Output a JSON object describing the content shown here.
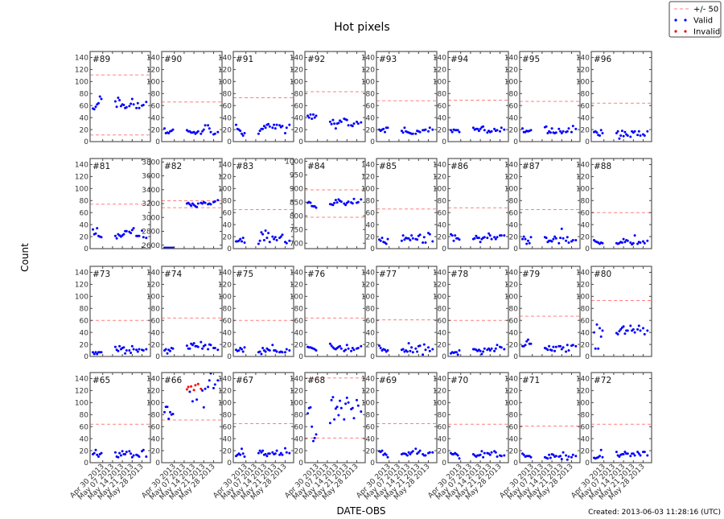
{
  "chart_data": {
    "type": "scatter",
    "title": "Hot pixels",
    "xlabel": "DATE-OBS",
    "ylabel": "Count",
    "footer": "Created: 2013-06-03 11:28:16 (UTC)",
    "xlim": [
      "2013-04-21",
      "2013-06-03"
    ],
    "xticks": [
      "2013-04-30",
      "2013-05-07",
      "2013-05-14",
      "2013-05-21",
      "2013-05-28"
    ],
    "xtick_labels": [
      "Apr 30 2013",
      "May 07 2013",
      "May 14 2013",
      "May 21 2013",
      "May 28 2013"
    ],
    "ylim": [
      0,
      150
    ],
    "yticks": [
      0,
      20,
      40,
      60,
      80,
      100,
      120,
      140
    ],
    "band_halfwidth": 50,
    "grid": false,
    "legend": {
      "placement": "top-right",
      "entries": [
        {
          "label": "+/- 50",
          "marker": "dashed-line",
          "color": "#ff8080"
        },
        {
          "label": "Valid",
          "marker": "dot",
          "color": "#0000ff"
        },
        {
          "label": "Invalid",
          "marker": "dot",
          "color": "#ff0000"
        }
      ]
    },
    "colors": {
      "valid": "#0000ff",
      "invalid": "#ff0000",
      "band": "#ff8080"
    },
    "x": [
      "2013-04-23",
      "2013-04-24",
      "2013-04-25",
      "2013-04-26",
      "2013-04-27",
      "2013-04-28",
      "2013-04-29",
      "2013-05-09",
      "2013-05-10",
      "2013-05-11",
      "2013-05-12",
      "2013-05-13",
      "2013-05-14",
      "2013-05-15",
      "2013-05-16",
      "2013-05-17",
      "2013-05-19",
      "2013-05-20",
      "2013-05-21",
      "2013-05-22",
      "2013-05-24",
      "2013-05-25",
      "2013-05-26",
      "2013-05-28",
      "2013-05-29",
      "2013-05-31"
    ],
    "panels": [
      {
        "label": "#89",
        "median": 61,
        "values": [
          55,
          54,
          58,
          62,
          64,
          75,
          71,
          67,
          58,
          73,
          69,
          59,
          62,
          61,
          56,
          57,
          59,
          63,
          71,
          62,
          56,
          64,
          56,
          60,
          61,
          66
        ]
      },
      {
        "label": "#90",
        "median": 16,
        "values": [
          22,
          14,
          15,
          14,
          17,
          18,
          20,
          19,
          17,
          17,
          15,
          15,
          16,
          13,
          15,
          17,
          13,
          17,
          20,
          27,
          27,
          22,
          16,
          12,
          13,
          16
        ]
      },
      {
        "label": "#91",
        "median": 23,
        "values": [
          28,
          21,
          20,
          18,
          13,
          10,
          14,
          13,
          18,
          21,
          21,
          26,
          23,
          28,
          29,
          25,
          23,
          28,
          22,
          28,
          27,
          24,
          26,
          14,
          23,
          28
        ]
      },
      {
        "label": "#92",
        "median": 33,
        "values": [
          43,
          40,
          45,
          38,
          45,
          40,
          43,
          33,
          29,
          36,
          30,
          22,
          30,
          31,
          35,
          33,
          38,
          37,
          36,
          27,
          27,
          26,
          30,
          33,
          30,
          32
        ]
      },
      {
        "label": "#93",
        "median": 18,
        "values": [
          20,
          18,
          20,
          21,
          16,
          23,
          23,
          18,
          15,
          23,
          17,
          16,
          15,
          14,
          13,
          13,
          13,
          18,
          17,
          16,
          19,
          19,
          20,
          17,
          23,
          20
        ]
      },
      {
        "label": "#94",
        "median": 19,
        "values": [
          19,
          16,
          20,
          19,
          19,
          19,
          16,
          23,
          20,
          21,
          21,
          18,
          21,
          24,
          25,
          19,
          15,
          18,
          16,
          17,
          21,
          18,
          19,
          17,
          23,
          20
        ]
      },
      {
        "label": "#95",
        "median": 17,
        "values": [
          22,
          16,
          16,
          18,
          17,
          18,
          19,
          24,
          25,
          14,
          17,
          15,
          22,
          15,
          14,
          15,
          21,
          17,
          14,
          17,
          16,
          17,
          22,
          16,
          26,
          21
        ]
      },
      {
        "label": "#96",
        "median": 14,
        "values": [
          16,
          17,
          15,
          11,
          10,
          19,
          14,
          14,
          17,
          5,
          10,
          18,
          9,
          16,
          12,
          10,
          8,
          17,
          15,
          17,
          11,
          17,
          10,
          12,
          10,
          17
        ]
      },
      {
        "label": "#81",
        "median": 24,
        "values": [
          32,
          24,
          25,
          34,
          21,
          20,
          19,
          21,
          17,
          24,
          22,
          20,
          22,
          24,
          29,
          29,
          28,
          26,
          31,
          34,
          21,
          21,
          21,
          30,
          19,
          18
        ]
      },
      {
        "label": "#82",
        "median": 3190,
        "ylim": [
          2550,
          3850
        ],
        "yticks": [
          2600,
          2800,
          3000,
          3200,
          3400,
          3600,
          3800
        ],
        "values": [
          2560,
          2560,
          2560,
          2560,
          2560,
          2560,
          2560,
          3200,
          3210,
          3190,
          3170,
          3200,
          3180,
          3160,
          3150,
          3200,
          3210,
          3200,
          3220,
          3210,
          3190,
          3200,
          3190,
          3220,
          3230,
          3250
        ]
      },
      {
        "label": "#83",
        "median": 15,
        "values": [
          12,
          12,
          13,
          16,
          12,
          18,
          10,
          8,
          13,
          27,
          24,
          14,
          30,
          18,
          26,
          11,
          20,
          16,
          19,
          14,
          18,
          20,
          23,
          11,
          9,
          13
        ]
      },
      {
        "label": "#84",
        "median": 845,
        "ylim": [
          680,
          1010
        ],
        "yticks": [
          700,
          750,
          800,
          850,
          900,
          950,
          1000
        ],
        "values": [
          848,
          851,
          848,
          836,
          835,
          835,
          830,
          843,
          842,
          840,
          847,
          858,
          849,
          860,
          855,
          852,
          845,
          840,
          847,
          852,
          849,
          846,
          862,
          848,
          850,
          860
        ]
      },
      {
        "label": "#85",
        "median": 16,
        "values": [
          15,
          13,
          18,
          11,
          10,
          8,
          16,
          13,
          22,
          15,
          18,
          17,
          17,
          14,
          22,
          17,
          16,
          15,
          21,
          23,
          10,
          19,
          10,
          26,
          24,
          12
        ]
      },
      {
        "label": "#86",
        "median": 18,
        "values": [
          24,
          22,
          13,
          22,
          17,
          17,
          15,
          16,
          17,
          21,
          18,
          18,
          11,
          16,
          18,
          19,
          18,
          25,
          22,
          16,
          19,
          16,
          19,
          22,
          22,
          22
        ]
      },
      {
        "label": "#87",
        "median": 15,
        "values": [
          16,
          20,
          16,
          8,
          13,
          9,
          19,
          19,
          18,
          11,
          13,
          13,
          12,
          16,
          20,
          17,
          9,
          18,
          33,
          17,
          13,
          19,
          10,
          12,
          14,
          14
        ]
      },
      {
        "label": "#88",
        "median": 10,
        "values": [
          14,
          12,
          11,
          10,
          8,
          10,
          9,
          9,
          8,
          9,
          11,
          10,
          16,
          11,
          14,
          13,
          10,
          7,
          9,
          22,
          8,
          11,
          10,
          12,
          9,
          13
        ]
      },
      {
        "label": "#73",
        "median": 10,
        "values": [
          7,
          4,
          7,
          4,
          7,
          7,
          7,
          16,
          11,
          9,
          17,
          12,
          14,
          15,
          5,
          10,
          10,
          6,
          17,
          12,
          11,
          8,
          12,
          11,
          10,
          12
        ]
      },
      {
        "label": "#74",
        "median": 14,
        "values": [
          10,
          12,
          5,
          11,
          9,
          14,
          13,
          18,
          13,
          13,
          21,
          19,
          22,
          17,
          17,
          16,
          24,
          13,
          17,
          19,
          12,
          20,
          19,
          14,
          14,
          11
        ]
      },
      {
        "label": "#75",
        "median": 10,
        "values": [
          11,
          9,
          10,
          14,
          12,
          8,
          15,
          7,
          8,
          4,
          14,
          10,
          8,
          13,
          11,
          10,
          19,
          10,
          10,
          8,
          7,
          8,
          7,
          7,
          12,
          10
        ]
      },
      {
        "label": "#76",
        "median": 14,
        "values": [
          16,
          15,
          15,
          14,
          13,
          12,
          10,
          21,
          18,
          15,
          13,
          12,
          14,
          16,
          17,
          13,
          9,
          11,
          19,
          13,
          9,
          14,
          11,
          13,
          14,
          17
        ]
      },
      {
        "label": "#77",
        "median": 11,
        "values": [
          18,
          14,
          10,
          12,
          11,
          8,
          10,
          11,
          12,
          8,
          10,
          8,
          22,
          9,
          15,
          7,
          13,
          8,
          17,
          18,
          3,
          20,
          11,
          15,
          9,
          12
        ]
      },
      {
        "label": "#78",
        "median": 10,
        "values": [
          5,
          7,
          6,
          7,
          7,
          3,
          10,
          12,
          12,
          11,
          9,
          11,
          9,
          4,
          8,
          13,
          11,
          13,
          10,
          13,
          9,
          13,
          19,
          16,
          15,
          12
        ]
      },
      {
        "label": "#79",
        "median": 17,
        "values": [
          17,
          17,
          19,
          25,
          28,
          21,
          21,
          14,
          13,
          11,
          17,
          11,
          10,
          16,
          9,
          16,
          17,
          17,
          12,
          15,
          8,
          19,
          10,
          18,
          19,
          17
        ]
      },
      {
        "label": "#80",
        "median": 43,
        "values": [
          40,
          13,
          53,
          13,
          47,
          33,
          43,
          39,
          37,
          42,
          45,
          48,
          50,
          38,
          43,
          43,
          51,
          43,
          45,
          40,
          45,
          51,
          43,
          47,
          37,
          43
        ]
      },
      {
        "label": "#65",
        "median": 14,
        "values": [
          14,
          16,
          21,
          13,
          10,
          14,
          16,
          17,
          10,
          9,
          16,
          12,
          19,
          14,
          14,
          18,
          19,
          15,
          9,
          12,
          13,
          12,
          10,
          19,
          21,
          10
        ]
      },
      {
        "label": "#66",
        "median": 121,
        "invalid": [
          7,
          8,
          10,
          12,
          13,
          15,
          16
        ],
        "values": [
          84,
          93,
          93,
          73,
          84,
          80,
          81,
          122,
          126,
          118,
          127,
          102,
          121,
          129,
          105,
          131,
          123,
          120,
          92,
          123,
          126,
          137,
          150,
          124,
          130,
          137
        ]
      },
      {
        "label": "#67",
        "median": 15,
        "values": [
          11,
          13,
          15,
          13,
          23,
          15,
          10,
          16,
          20,
          17,
          20,
          13,
          14,
          11,
          15,
          15,
          17,
          14,
          15,
          20,
          13,
          16,
          13,
          24,
          17,
          16
        ]
      },
      {
        "label": "#68",
        "median": 91,
        "values": [
          82,
          91,
          92,
          60,
          36,
          41,
          47,
          66,
          104,
          109,
          72,
          90,
          93,
          79,
          103,
          91,
          72,
          98,
          108,
          100,
          89,
          91,
          74,
          104,
          95,
          85
        ]
      },
      {
        "label": "#69",
        "median": 15,
        "values": [
          19,
          18,
          20,
          13,
          15,
          13,
          9,
          14,
          15,
          15,
          14,
          12,
          17,
          14,
          17,
          19,
          23,
          15,
          17,
          20,
          14,
          12,
          12,
          16,
          17,
          17
        ]
      },
      {
        "label": "#70",
        "median": 14,
        "values": [
          16,
          14,
          14,
          16,
          14,
          12,
          7,
          14,
          12,
          10,
          12,
          12,
          13,
          19,
          9,
          16,
          16,
          15,
          13,
          17,
          19,
          17,
          10,
          12,
          11,
          12
        ]
      },
      {
        "label": "#71",
        "median": 11,
        "values": [
          15,
          13,
          10,
          11,
          11,
          11,
          9,
          9,
          8,
          7,
          13,
          8,
          14,
          13,
          10,
          11,
          10,
          11,
          6,
          17,
          12,
          5,
          10,
          9,
          13,
          11
        ]
      },
      {
        "label": "#72",
        "median": 14,
        "values": [
          8,
          7,
          8,
          9,
          11,
          21,
          9,
          18,
          12,
          10,
          13,
          14,
          14,
          18,
          15,
          15,
          11,
          15,
          15,
          12,
          18,
          15,
          12,
          18,
          18,
          12
        ]
      }
    ]
  }
}
